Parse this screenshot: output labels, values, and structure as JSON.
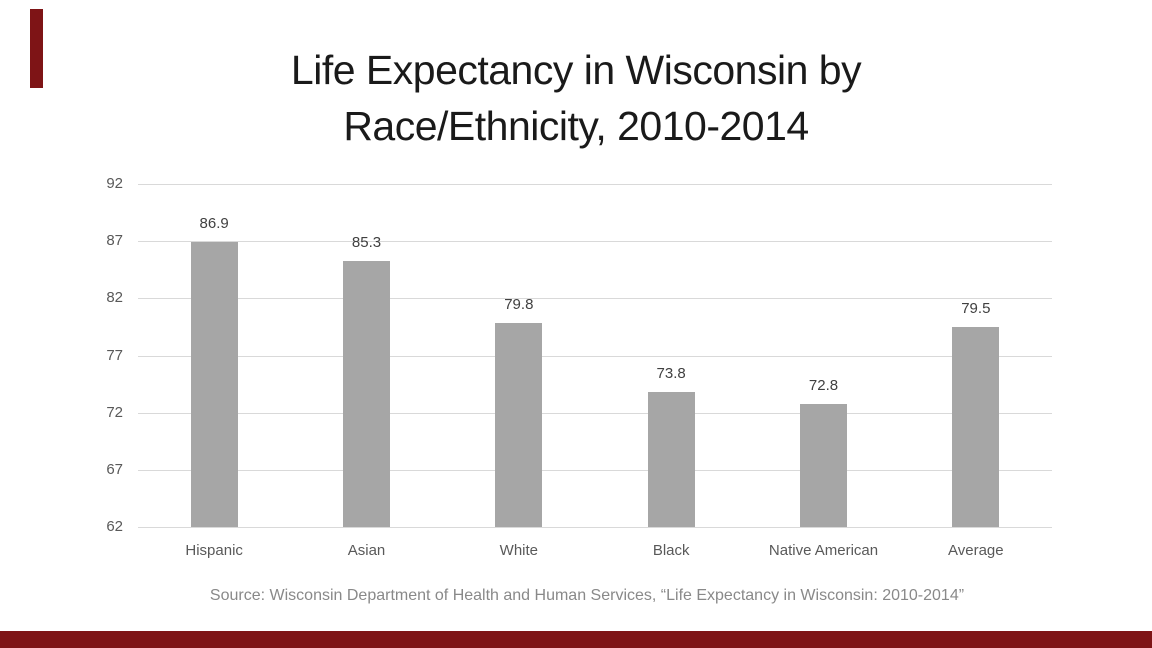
{
  "slide": {
    "title_line1": "Life Expectancy in Wisconsin by",
    "title_line2": "Race/Ethnicity, 2010-2014",
    "source": "Source: Wisconsin Department of Health and Human Services, “Life Expectancy in Wisconsin: 2010-2014”",
    "accent_color": "#7e1416",
    "title_color": "#1a1a1a"
  },
  "chart_data": {
    "type": "bar",
    "title": "Life Expectancy in Wisconsin by Race/Ethnicity, 2010-2014",
    "categories": [
      "Hispanic",
      "Asian",
      "White",
      "Black",
      "Native American",
      "Average"
    ],
    "values": [
      86.9,
      85.3,
      79.8,
      73.8,
      72.8,
      79.5
    ],
    "value_labels": [
      "86.9",
      "85.3",
      "79.8",
      "73.8",
      "72.8",
      "79.5"
    ],
    "y_ticks": [
      92,
      87,
      82,
      77,
      72,
      67,
      62
    ],
    "ylim": [
      62,
      92
    ],
    "xlabel": "",
    "ylabel": "",
    "grid": "horizontal-only",
    "legend": "none",
    "source_note": "Source: Wisconsin Department of Health and Human Services, “Life Expectancy in Wisconsin: 2010-2014”",
    "colors": {
      "bar": "#a6a6a6",
      "gridline": "#d9d9d9",
      "value_label": "#404040",
      "tick_label": "#595959",
      "category_label": "#595959",
      "source_text": "#898989"
    }
  }
}
